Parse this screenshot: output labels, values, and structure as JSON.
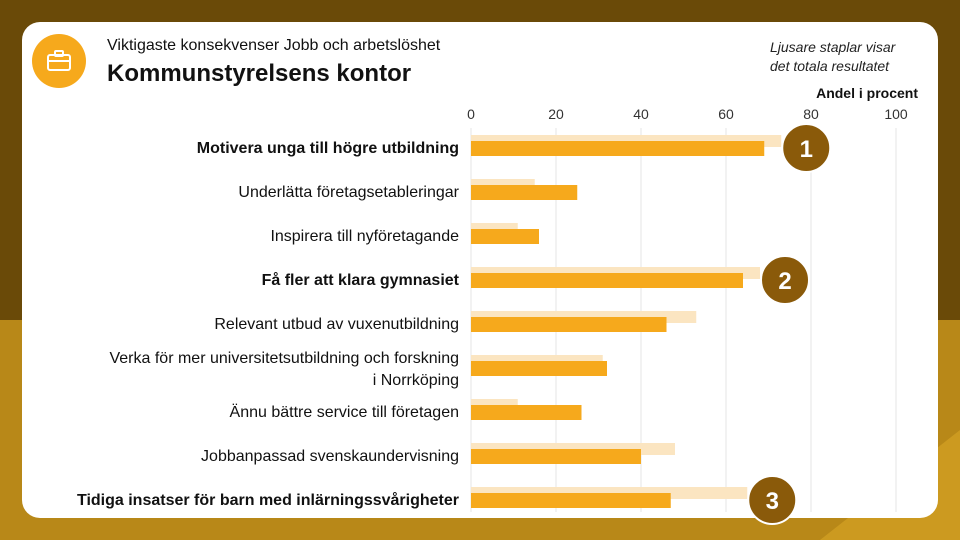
{
  "header": {
    "subtitle": "Viktigaste konsekvenser Jobb och arbetslöshet",
    "title": "Kommunstyrelsens kontor",
    "note": "Ljusare staplar visar\ndet totala resultatet",
    "logo_icon": "briefcase-icon"
  },
  "colors": {
    "frame": "#7a5a10",
    "accent": "#f6a91c",
    "bar_light": "#fbe5c1",
    "badge": "#8a5a0a"
  },
  "chart_data": {
    "type": "bar",
    "orientation": "horizontal",
    "xlabel": "Andel i procent",
    "xlim": [
      0,
      100
    ],
    "x_ticks": [
      "0",
      "20",
      "40",
      "60",
      "80",
      "100"
    ],
    "grid": true,
    "categories": [
      {
        "label": "Motivera unga till högre utbildning",
        "bold": true
      },
      {
        "label": "Underlätta företagsetableringar",
        "bold": false
      },
      {
        "label": "Inspirera till nyföretagande",
        "bold": false
      },
      {
        "label": "Få fler att klara gymnasiet",
        "bold": true
      },
      {
        "label": "Relevant utbud av vuxenutbildning",
        "bold": false
      },
      {
        "label": "Verka för mer universitetsutbildning och forskning\ni Norrköping",
        "bold": false
      },
      {
        "label": "Ännu bättre service till företagen",
        "bold": false
      },
      {
        "label": "Jobbanpassad svenskaundervisning",
        "bold": false
      },
      {
        "label": "Tidiga insatser för barn med inlärningssvårigheter",
        "bold": true
      }
    ],
    "series": [
      {
        "name": "Totalt resultat",
        "values": [
          73,
          15,
          11,
          68,
          53,
          31,
          11,
          48,
          65
        ]
      },
      {
        "name": "Kommunstyrelsens kontor",
        "values": [
          69,
          25,
          16,
          64,
          46,
          32,
          26,
          40,
          47
        ]
      }
    ],
    "rank_badges": [
      {
        "rank": "1",
        "category_index": 0
      },
      {
        "rank": "2",
        "category_index": 3
      },
      {
        "rank": "3",
        "category_index": 8
      }
    ]
  }
}
